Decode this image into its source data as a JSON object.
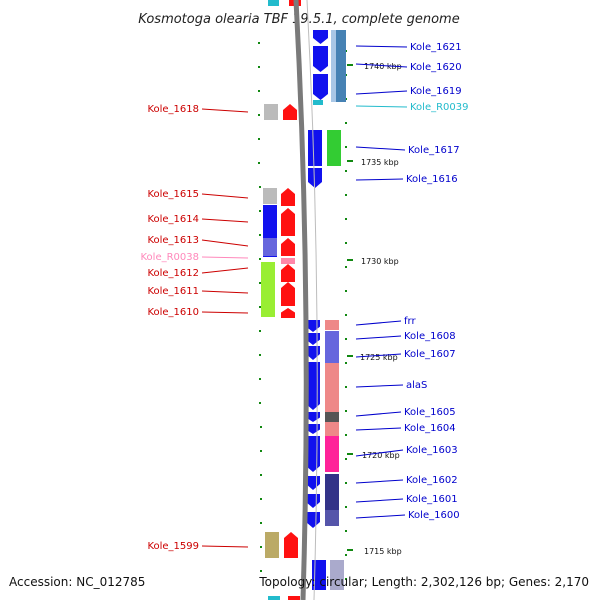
{
  "title": "Kosmotoga olearia TBF 19.5.1, complete genome",
  "accession": "Accession: NC_012785",
  "topology": "Topology: circular; Length: 2,302,126 bp; Genes: 2,170",
  "colors": {
    "left_label": "#cc0000",
    "right_label": "#0000cc",
    "rna_left_label": "#ff88bb",
    "rna_right_label": "#22bbcc",
    "backbone": "#777777",
    "kbp_tick": "#118811"
  },
  "kbp_markers": [
    {
      "text": "1740 kbp",
      "kbp": 1740
    },
    {
      "text": "1735 kbp",
      "kbp": 1735
    },
    {
      "text": "1730 kbp",
      "kbp": 1730
    },
    {
      "text": "1725 kbp",
      "kbp": 1725
    },
    {
      "text": "1720 kbp",
      "kbp": 1720
    },
    {
      "text": "1715 kbp",
      "kbp": 1715
    }
  ],
  "left_labels": [
    {
      "text": "Kole_1618",
      "type": "gene"
    },
    {
      "text": "Kole_1615",
      "type": "gene"
    },
    {
      "text": "Kole_1614",
      "type": "gene"
    },
    {
      "text": "Kole_1613",
      "type": "gene"
    },
    {
      "text": "Kole_R0038",
      "type": "rna"
    },
    {
      "text": "Kole_1612",
      "type": "gene"
    },
    {
      "text": "Kole_1611",
      "type": "gene"
    },
    {
      "text": "Kole_1610",
      "type": "gene"
    },
    {
      "text": "Kole_1599",
      "type": "gene"
    }
  ],
  "right_labels": [
    {
      "text": "Kole_1621",
      "type": "gene"
    },
    {
      "text": "Kole_1620",
      "type": "gene"
    },
    {
      "text": "Kole_1619",
      "type": "gene"
    },
    {
      "text": "Kole_R0039",
      "type": "rna"
    },
    {
      "text": "Kole_1617",
      "type": "gene"
    },
    {
      "text": "Kole_1616",
      "type": "gene"
    },
    {
      "text": "frr",
      "type": "gene"
    },
    {
      "text": "Kole_1608",
      "type": "gene"
    },
    {
      "text": "Kole_1607",
      "type": "gene"
    },
    {
      "text": "alaS",
      "type": "gene"
    },
    {
      "text": "Kole_1605",
      "type": "gene"
    },
    {
      "text": "Kole_1604",
      "type": "gene"
    },
    {
      "text": "Kole_1603",
      "type": "gene"
    },
    {
      "text": "Kole_1602",
      "type": "gene"
    },
    {
      "text": "Kole_1601",
      "type": "gene"
    },
    {
      "text": "Kole_1600",
      "type": "gene"
    }
  ]
}
